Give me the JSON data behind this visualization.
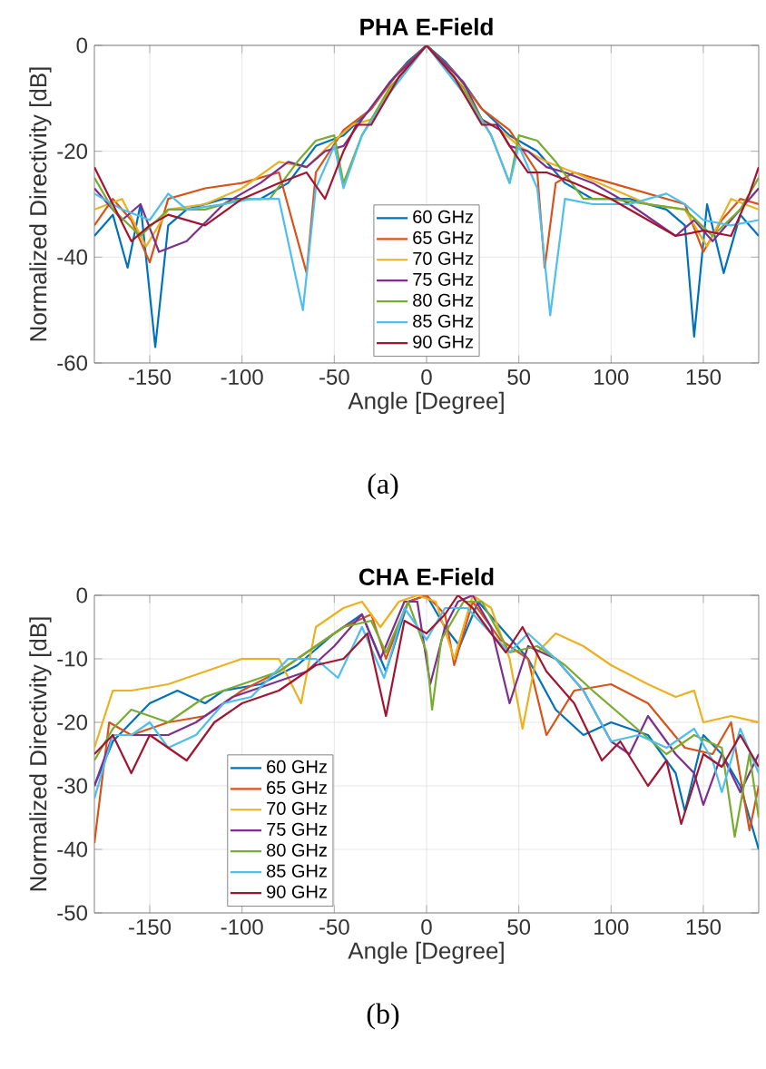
{
  "chart_data": [
    {
      "type": "line",
      "title": "PHA  E-Field",
      "xlabel": "Angle [Degree]",
      "ylabel": "Normalized Directivity [dB]",
      "xlim": [
        -180,
        180
      ],
      "ylim": [
        -60,
        0
      ],
      "xticks": [
        -150,
        -100,
        -50,
        0,
        50,
        100,
        150
      ],
      "yticks": [
        -60,
        -40,
        -20,
        0
      ],
      "grid": true,
      "legend": "bottom",
      "marker": "none",
      "line_style": "solid",
      "annotations": [
        "(a)"
      ],
      "series": [
        {
          "name": "60 GHz",
          "color": "#0072bd",
          "x": [
            -180,
            -170,
            -162,
            -155,
            -147,
            -140,
            -130,
            -110,
            -90,
            -75,
            -60,
            -45,
            -30,
            -20,
            -10,
            0,
            10,
            20,
            30,
            45,
            60,
            75,
            90,
            110,
            130,
            140,
            145,
            152,
            161,
            170,
            180
          ],
          "values": [
            -36,
            -32,
            -42,
            -30,
            -57,
            -34,
            -31,
            -29,
            -29,
            -26,
            -19,
            -17,
            -12,
            -7,
            -3,
            0,
            -3,
            -7,
            -12,
            -17,
            -20,
            -26,
            -29,
            -29,
            -31,
            -34,
            -55,
            -30,
            -43,
            -32,
            -36
          ]
        },
        {
          "name": "65 GHz",
          "color": "#d95319",
          "x": [
            -180,
            -170,
            -160,
            -150,
            -140,
            -120,
            -100,
            -80,
            -65,
            -60,
            -45,
            -30,
            -15,
            0,
            15,
            30,
            45,
            60,
            64,
            70,
            80,
            100,
            120,
            140,
            150,
            160,
            170,
            180
          ],
          "values": [
            -34,
            -29,
            -33,
            -41,
            -29,
            -27,
            -26,
            -24,
            -43,
            -24,
            -16,
            -12,
            -5,
            0,
            -5,
            -12,
            -16,
            -24,
            -42,
            -26,
            -24,
            -26,
            -28,
            -30,
            -39,
            -33,
            -29,
            -30
          ]
        },
        {
          "name": "70 GHz",
          "color": "#edb120",
          "x": [
            -180,
            -165,
            -152,
            -140,
            -120,
            -100,
            -80,
            -65,
            -50,
            -40,
            -30,
            -15,
            0,
            15,
            30,
            40,
            50,
            65,
            80,
            100,
            120,
            140,
            152,
            165,
            180
          ],
          "values": [
            -31,
            -29,
            -38,
            -31,
            -30,
            -27,
            -22,
            -23,
            -18,
            -15,
            -14,
            -6,
            0,
            -6,
            -14,
            -16,
            -19,
            -22,
            -24,
            -27,
            -30,
            -31,
            -38,
            -29,
            -31
          ]
        },
        {
          "name": "75 GHz",
          "color": "#7e2f8e",
          "x": [
            -180,
            -165,
            -155,
            -145,
            -130,
            -110,
            -90,
            -75,
            -65,
            -55,
            -45,
            -35,
            -20,
            0,
            20,
            30,
            40,
            45,
            55,
            65,
            75,
            90,
            110,
            135,
            145,
            155,
            165,
            180
          ],
          "values": [
            -27,
            -33,
            -30,
            -39,
            -37,
            -30,
            -26,
            -22,
            -23,
            -20,
            -19,
            -14,
            -7,
            0,
            -7,
            -14,
            -16,
            -19,
            -20,
            -23,
            -24,
            -26,
            -30,
            -36,
            -33,
            -37,
            -33,
            -27
          ]
        },
        {
          "name": "80 GHz",
          "color": "#77ac30",
          "x": [
            -180,
            -170,
            -155,
            -140,
            -120,
            -100,
            -85,
            -70,
            -60,
            -50,
            -45,
            -35,
            -20,
            0,
            20,
            35,
            45,
            50,
            60,
            70,
            85,
            100,
            120,
            140,
            155,
            170,
            180
          ],
          "values": [
            -25,
            -31,
            -36,
            -31,
            -31,
            -29,
            -29,
            -22,
            -18,
            -17,
            -26,
            -17,
            -8,
            0,
            -8,
            -17,
            -26,
            -17,
            -18,
            -22,
            -29,
            -29,
            -30,
            -31,
            -36,
            -31,
            -25
          ]
        },
        {
          "name": "85 GHz",
          "color": "#4dbeee",
          "x": [
            -180,
            -165,
            -150,
            -140,
            -130,
            -110,
            -95,
            -80,
            -67,
            -60,
            -50,
            -45,
            -35,
            -20,
            0,
            20,
            35,
            45,
            50,
            60,
            67,
            75,
            90,
            110,
            130,
            140,
            150,
            165,
            180
          ],
          "values": [
            -28,
            -31,
            -33,
            -28,
            -31,
            -30,
            -29,
            -29,
            -50,
            -27,
            -19,
            -27,
            -17,
            -9,
            0,
            -9,
            -17,
            -26,
            -19,
            -27,
            -51,
            -29,
            -30,
            -30,
            -28,
            -30,
            -33,
            -34,
            -33
          ]
        },
        {
          "name": "90 GHz",
          "color": "#a2142f",
          "x": [
            -180,
            -170,
            -160,
            -150,
            -140,
            -120,
            -100,
            -80,
            -65,
            -55,
            -45,
            -38,
            -30,
            -15,
            0,
            15,
            30,
            38,
            45,
            55,
            65,
            80,
            100,
            120,
            135,
            150,
            165,
            175,
            180
          ],
          "values": [
            -23,
            -30,
            -37,
            -34,
            -32,
            -34,
            -29,
            -26,
            -24,
            -29,
            -20,
            -15,
            -15,
            -6,
            0,
            -6,
            -15,
            -15,
            -19,
            -24,
            -24,
            -26,
            -29,
            -33,
            -36,
            -35,
            -36,
            -28,
            -23
          ]
        }
      ]
    },
    {
      "type": "line",
      "title": "CHA E-Field",
      "xlabel": "Angle [Degree]",
      "ylabel": "Normalized Directivity [dB]",
      "xlim": [
        -180,
        180
      ],
      "ylim": [
        -50,
        0
      ],
      "xticks": [
        -150,
        -100,
        -50,
        0,
        50,
        100,
        150
      ],
      "yticks": [
        -50,
        -40,
        -30,
        -20,
        -10,
        0
      ],
      "grid": true,
      "legend": "bottom left",
      "marker": "none",
      "line_style": "solid",
      "annotations": [
        "(b)"
      ],
      "series": [
        {
          "name": "60 GHz",
          "color": "#0072bd",
          "x": [
            -180,
            -170,
            -160,
            -150,
            -135,
            -120,
            -110,
            -90,
            -70,
            -50,
            -35,
            -22,
            -10,
            0,
            10,
            18,
            28,
            40,
            55,
            70,
            85,
            100,
            120,
            135,
            140,
            150,
            160,
            170,
            180
          ],
          "values": [
            -30,
            -23,
            -20,
            -17,
            -15,
            -17,
            -15,
            -14,
            -11,
            -6,
            -3,
            -12,
            -1,
            0,
            -5,
            -8,
            -1,
            -5,
            -10,
            -18,
            -22,
            -20,
            -22,
            -28,
            -34,
            -22,
            -25,
            -30,
            -40
          ]
        },
        {
          "name": "65 GHz",
          "color": "#d95319",
          "x": [
            -180,
            -172,
            -160,
            -140,
            -120,
            -100,
            -80,
            -60,
            -45,
            -30,
            -22,
            -10,
            0,
            10,
            15,
            25,
            40,
            55,
            65,
            80,
            100,
            120,
            140,
            155,
            165,
            175,
            180
          ],
          "values": [
            -39,
            -20,
            -22,
            -20,
            -19,
            -15,
            -12,
            -8,
            -5,
            -3,
            -10,
            -1,
            0,
            -3,
            -11,
            -1,
            -7,
            -10,
            -22,
            -15,
            -14,
            -17,
            -24,
            -25,
            -20,
            -37,
            -30
          ]
        },
        {
          "name": "70 GHz",
          "color": "#edb120",
          "x": [
            -180,
            -170,
            -160,
            -140,
            -120,
            -100,
            -80,
            -68,
            -60,
            -45,
            -35,
            -25,
            -15,
            -5,
            5,
            15,
            25,
            35,
            45,
            52,
            60,
            70,
            85,
            100,
            120,
            135,
            145,
            150,
            165,
            180
          ],
          "values": [
            -24,
            -15,
            -15,
            -14,
            -12,
            -10,
            -10,
            -17,
            -5,
            -2,
            -1,
            -5,
            -1,
            0,
            -1,
            -10,
            0,
            -2,
            -10,
            -21,
            -9,
            -6,
            -8,
            -11,
            -14,
            -16,
            -15,
            -20,
            -19,
            -20
          ]
        },
        {
          "name": "75 GHz",
          "color": "#7e2f8e",
          "x": [
            -180,
            -170,
            -155,
            -140,
            -125,
            -105,
            -85,
            -65,
            -50,
            -35,
            -25,
            -12,
            -5,
            2,
            10,
            17,
            25,
            35,
            45,
            55,
            70,
            85,
            100,
            110,
            120,
            135,
            145,
            150,
            160,
            170,
            180
          ],
          "values": [
            -30,
            -22,
            -22,
            -22,
            -20,
            -16,
            -14,
            -12,
            -8,
            -3,
            -10,
            -1,
            -1,
            -14,
            -5,
            -1,
            0,
            -5,
            -17,
            -8,
            -10,
            -15,
            -23,
            -25,
            -19,
            -25,
            -28,
            -33,
            -25,
            -31,
            -25
          ]
        },
        {
          "name": "80 GHz",
          "color": "#77ac30",
          "x": [
            -180,
            -170,
            -160,
            -140,
            -120,
            -100,
            -80,
            -60,
            -45,
            -30,
            -22,
            -10,
            0,
            3,
            8,
            20,
            30,
            45,
            60,
            75,
            90,
            110,
            130,
            145,
            160,
            167,
            175,
            180
          ],
          "values": [
            -26,
            -21,
            -18,
            -20,
            -16,
            -14,
            -12,
            -8,
            -5,
            -4,
            -9,
            -1,
            -9,
            -18,
            -7,
            -1,
            -1,
            -9,
            -8,
            -11,
            -15,
            -20,
            -25,
            -22,
            -24,
            -38,
            -25,
            -35
          ]
        },
        {
          "name": "85 GHz",
          "color": "#4dbeee",
          "x": [
            -180,
            -170,
            -160,
            -150,
            -140,
            -125,
            -110,
            -95,
            -75,
            -60,
            -48,
            -35,
            -23,
            -12,
            0,
            10,
            22,
            35,
            45,
            55,
            70,
            85,
            100,
            115,
            130,
            145,
            155,
            160,
            170,
            180
          ],
          "values": [
            -32,
            -22,
            -22,
            -20,
            -24,
            -22,
            -17,
            -16,
            -10,
            -10,
            -13,
            -5,
            -13,
            -2,
            -7,
            -2,
            -2,
            -6,
            -9,
            -6,
            -10,
            -15,
            -23,
            -22,
            -24,
            -21,
            -26,
            -31,
            -21,
            -28
          ]
        },
        {
          "name": "90 GHz",
          "color": "#a2142f",
          "x": [
            -180,
            -170,
            -160,
            -150,
            -140,
            -130,
            -115,
            -100,
            -80,
            -60,
            -45,
            -32,
            -22,
            -12,
            0,
            10,
            17,
            25,
            35,
            43,
            52,
            65,
            80,
            95,
            105,
            120,
            130,
            138,
            150,
            160,
            170,
            180
          ],
          "values": [
            -25,
            -22,
            -28,
            -22,
            -24,
            -26,
            -20,
            -17,
            -15,
            -11,
            -10,
            -6,
            -19,
            -4,
            -6,
            -3,
            0,
            -2,
            -6,
            -9,
            -5,
            -12,
            -17,
            -26,
            -23,
            -30,
            -26,
            -36,
            -25,
            -27,
            -22,
            -27
          ]
        }
      ]
    }
  ]
}
